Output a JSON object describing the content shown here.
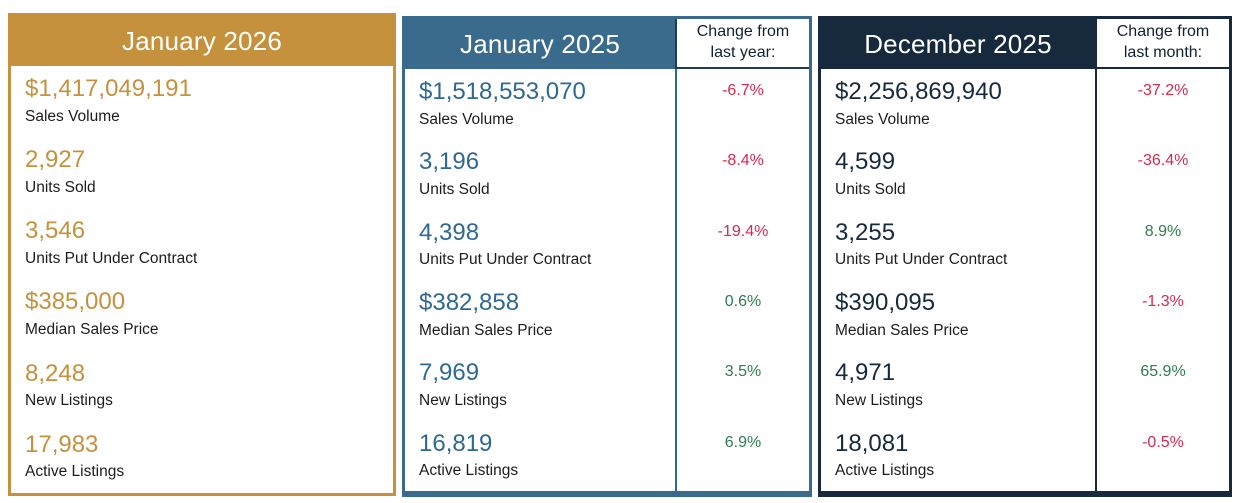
{
  "colors": {
    "gold": "#C6913C",
    "steel_blue": "#3A6B8D",
    "navy": "#16293D",
    "negative_red": "#D62A4E",
    "positive_green": "#2E7D4F"
  },
  "panels": [
    {
      "title": "January 2026",
      "rows": [
        {
          "value": "$1,417,049,191",
          "label": "Sales Volume"
        },
        {
          "value": "2,927",
          "label": "Units Sold"
        },
        {
          "value": "3,546",
          "label": "Units Put Under Contract"
        },
        {
          "value": "$385,000",
          "label": "Median Sales Price"
        },
        {
          "value": "8,248",
          "label": "New Listings"
        },
        {
          "value": "17,983",
          "label": "Active Listings"
        }
      ]
    },
    {
      "title": "January 2025",
      "change_header": "Change from last year:",
      "rows": [
        {
          "value": "$1,518,553,070",
          "label": "Sales Volume",
          "change": "-6.7%",
          "direction": "neg"
        },
        {
          "value": "3,196",
          "label": "Units Sold",
          "change": "-8.4%",
          "direction": "neg"
        },
        {
          "value": "4,398",
          "label": "Units Put Under Contract",
          "change": "-19.4%",
          "direction": "neg"
        },
        {
          "value": "$382,858",
          "label": "Median Sales Price",
          "change": "0.6%",
          "direction": "pos"
        },
        {
          "value": "7,969",
          "label": "New Listings",
          "change": "3.5%",
          "direction": "pos"
        },
        {
          "value": "16,819",
          "label": "Active Listings",
          "change": "6.9%",
          "direction": "pos"
        }
      ]
    },
    {
      "title": "December 2025",
      "change_header": "Change from last month:",
      "rows": [
        {
          "value": "$2,256,869,940",
          "label": "Sales Volume",
          "change": "-37.2%",
          "direction": "neg"
        },
        {
          "value": "4,599",
          "label": "Units Sold",
          "change": "-36.4%",
          "direction": "neg"
        },
        {
          "value": "3,255",
          "label": "Units Put Under Contract",
          "change": "8.9%",
          "direction": "pos"
        },
        {
          "value": "$390,095",
          "label": "Median Sales Price",
          "change": "-1.3%",
          "direction": "neg"
        },
        {
          "value": "4,971",
          "label": "New Listings",
          "change": "65.9%",
          "direction": "pos"
        },
        {
          "value": "18,081",
          "label": "Active Listings",
          "change": "-0.5%",
          "direction": "neg"
        }
      ]
    }
  ],
  "chart_data": {
    "type": "table",
    "metrics": [
      "Sales Volume",
      "Units Sold",
      "Units Put Under Contract",
      "Median Sales Price",
      "New Listings",
      "Active Listings"
    ],
    "columns": [
      {
        "period": "January 2026",
        "values": [
          "$1,417,049,191",
          "2,927",
          "3,546",
          "$385,000",
          "8,248",
          "17,983"
        ]
      },
      {
        "period": "January 2025",
        "values": [
          "$1,518,553,070",
          "3,196",
          "4,398",
          "$382,858",
          "7,969",
          "16,819"
        ],
        "change_from_last_year": [
          "-6.7%",
          "-8.4%",
          "-19.4%",
          "0.6%",
          "3.5%",
          "6.9%"
        ]
      },
      {
        "period": "December 2025",
        "values": [
          "$2,256,869,940",
          "4,599",
          "3,255",
          "$390,095",
          "4,971",
          "18,081"
        ],
        "change_from_last_month": [
          "-37.2%",
          "-36.4%",
          "8.9%",
          "-1.3%",
          "65.9%",
          "-0.5%"
        ]
      }
    ]
  }
}
